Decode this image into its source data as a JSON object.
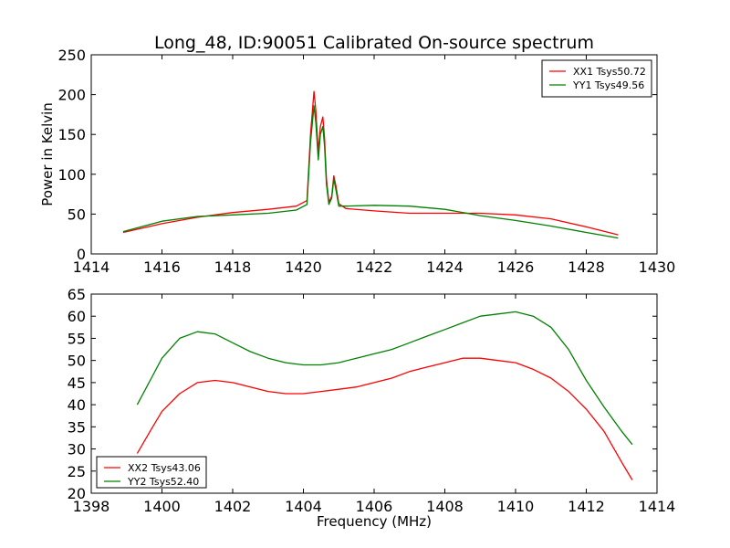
{
  "chart_data": [
    {
      "type": "line",
      "title": "Long_48, ID:90051 Calibrated On-source spectrum",
      "xlabel": "",
      "ylabel": "Power in Kelvin",
      "xlim": [
        1414,
        1430
      ],
      "ylim": [
        0,
        250
      ],
      "xticks": [
        1414,
        1416,
        1418,
        1420,
        1422,
        1424,
        1426,
        1428,
        1430
      ],
      "yticks": [
        0,
        50,
        100,
        150,
        200,
        250
      ],
      "legend_position": "top-right",
      "series": [
        {
          "name": "XX1 Tsys50.72",
          "color": "#ff0000",
          "x": [
            1414.9,
            1416,
            1417,
            1418,
            1419,
            1419.8,
            1420.1,
            1420.2,
            1420.3,
            1420.35,
            1420.42,
            1420.48,
            1420.55,
            1420.6,
            1420.65,
            1420.72,
            1420.8,
            1420.86,
            1420.92,
            1421.0,
            1421.2,
            1422,
            1423,
            1424,
            1425,
            1426,
            1427,
            1428,
            1428.9
          ],
          "y": [
            27,
            38,
            46,
            52,
            56,
            60,
            67,
            150,
            204,
            180,
            128,
            160,
            172,
            145,
            95,
            65,
            72,
            98,
            85,
            63,
            57,
            54,
            51,
            51,
            51,
            49,
            44,
            34,
            24
          ]
        },
        {
          "name": "YY1 Tsys49.56",
          "color": "#008000",
          "x": [
            1414.9,
            1416,
            1417,
            1418,
            1419,
            1419.8,
            1420.1,
            1420.2,
            1420.3,
            1420.35,
            1420.42,
            1420.48,
            1420.55,
            1420.6,
            1420.65,
            1420.72,
            1420.8,
            1420.86,
            1420.92,
            1421.0,
            1421.2,
            1422,
            1423,
            1424,
            1425,
            1426,
            1427,
            1428,
            1428.9
          ],
          "y": [
            28,
            41,
            47,
            49,
            51,
            55,
            62,
            140,
            186,
            165,
            118,
            150,
            160,
            135,
            88,
            62,
            70,
            94,
            80,
            60,
            60,
            61,
            60,
            56,
            48,
            42,
            35,
            27,
            20
          ]
        }
      ]
    },
    {
      "type": "line",
      "title": "",
      "xlabel": "Frequency (MHz)",
      "ylabel": "",
      "xlim": [
        1398,
        1414
      ],
      "ylim": [
        20,
        65
      ],
      "xticks": [
        1398,
        1400,
        1402,
        1404,
        1406,
        1408,
        1410,
        1412,
        1414
      ],
      "yticks": [
        20,
        25,
        30,
        35,
        40,
        45,
        50,
        55,
        60,
        65
      ],
      "legend_position": "bottom-left",
      "series": [
        {
          "name": "XX2 Tsys43.06",
          "color": "#ff0000",
          "x": [
            1399.3,
            1399.7,
            1400.0,
            1400.5,
            1401.0,
            1401.5,
            1402.0,
            1402.5,
            1403.0,
            1403.5,
            1404.0,
            1404.5,
            1405.0,
            1405.5,
            1406.0,
            1406.5,
            1407.0,
            1407.5,
            1408.0,
            1408.5,
            1409.0,
            1409.5,
            1410.0,
            1410.5,
            1411.0,
            1411.5,
            1412.0,
            1412.5,
            1413.0,
            1413.3
          ],
          "y": [
            29,
            34.5,
            38.5,
            42.5,
            45,
            45.5,
            45,
            44,
            43,
            42.5,
            42.5,
            43,
            43.5,
            44,
            45,
            46,
            47.5,
            48.5,
            49.5,
            50.5,
            50.5,
            50,
            49.5,
            48,
            46,
            43,
            39,
            34,
            27,
            23
          ]
        },
        {
          "name": "YY2 Tsys52.40",
          "color": "#008000",
          "x": [
            1399.3,
            1399.7,
            1400.0,
            1400.5,
            1401.0,
            1401.5,
            1402.0,
            1402.5,
            1403.0,
            1403.5,
            1404.0,
            1404.5,
            1405.0,
            1405.5,
            1406.0,
            1406.5,
            1407.0,
            1407.5,
            1408.0,
            1408.5,
            1409.0,
            1409.5,
            1410.0,
            1410.5,
            1411.0,
            1411.5,
            1412.0,
            1412.5,
            1413.0,
            1413.3
          ],
          "y": [
            40,
            46,
            50.5,
            55,
            56.5,
            56,
            54,
            52,
            50.5,
            49.5,
            49,
            49,
            49.5,
            50.5,
            51.5,
            52.5,
            54,
            55.5,
            57,
            58.5,
            60,
            60.5,
            61,
            60,
            57.5,
            52.5,
            45.5,
            39.5,
            34,
            31
          ]
        }
      ]
    }
  ]
}
